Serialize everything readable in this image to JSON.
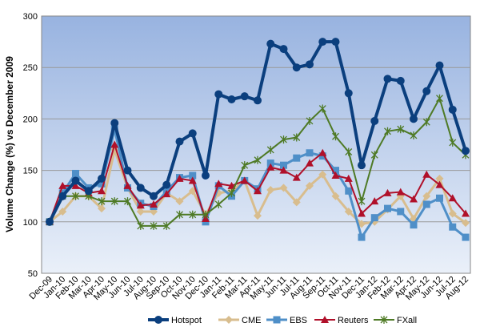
{
  "chart_data": {
    "type": "line",
    "title": "",
    "xlabel": "",
    "ylabel": "Volume Change (%) vs December 2009",
    "ylim": [
      50,
      300
    ],
    "yticks": [
      50,
      100,
      150,
      200,
      250,
      300
    ],
    "grid": true,
    "legend_position": "bottom",
    "categories": [
      "Dec-09",
      "Jan-10",
      "Feb-10",
      "Mar-10",
      "Apr-10",
      "May-10",
      "Jun-10",
      "Jul-10",
      "Aug-10",
      "Sep-10",
      "Oct-10",
      "Nov-10",
      "Dec-10",
      "Jan-11",
      "Feb-11",
      "Mar-11",
      "Apr-11",
      "May-11",
      "Jun-11",
      "Jul-11",
      "Aug-11",
      "Sep-11",
      "Oct-11",
      "Nov-11",
      "Dec-11",
      "Jan-12",
      "Feb-12",
      "Mar-12",
      "Apr-12",
      "May-12",
      "Jun-12",
      "Jul-12",
      "Aug-12"
    ],
    "series": [
      {
        "name": "Hotspot",
        "color": "#0b3f7e",
        "marker": "circle",
        "width": 4,
        "values": [
          100,
          125,
          140,
          130,
          142,
          196,
          150,
          133,
          125,
          136,
          178,
          186,
          145,
          224,
          219,
          222,
          218,
          273,
          268,
          250,
          253,
          275,
          275,
          225,
          155,
          198,
          239,
          237,
          200,
          227,
          252,
          209,
          169
        ]
      },
      {
        "name": "CME",
        "color": "#d8bd8e",
        "marker": "diamond",
        "width": 3,
        "values": [
          100,
          110,
          125,
          125,
          113,
          170,
          133,
          110,
          110,
          128,
          120,
          130,
          107,
          128,
          130,
          140,
          106,
          131,
          133,
          119,
          135,
          146,
          125,
          110,
          98,
          100,
          112,
          125,
          103,
          125,
          142,
          108,
          99
        ]
      },
      {
        "name": "EBS",
        "color": "#4f8fc8",
        "marker": "square",
        "width": 3,
        "values": [
          100,
          128,
          147,
          133,
          137,
          190,
          133,
          118,
          115,
          130,
          143,
          145,
          100,
          135,
          125,
          140,
          132,
          157,
          155,
          162,
          167,
          164,
          150,
          130,
          85,
          104,
          113,
          110,
          97,
          117,
          123,
          95,
          85
        ]
      },
      {
        "name": "Reuters",
        "color": "#b0102a",
        "marker": "triangle",
        "width": 2,
        "values": [
          100,
          135,
          135,
          128,
          130,
          175,
          135,
          116,
          117,
          127,
          142,
          140,
          103,
          137,
          135,
          140,
          130,
          153,
          150,
          143,
          157,
          167,
          145,
          142,
          108,
          120,
          128,
          129,
          122,
          146,
          136,
          123,
          108
        ]
      },
      {
        "name": "FXall",
        "color": "#4e7a25",
        "marker": "star",
        "width": 2,
        "values": [
          100,
          125,
          125,
          125,
          120,
          120,
          120,
          96,
          96,
          96,
          107,
          107,
          107,
          117,
          128,
          155,
          160,
          170,
          180,
          182,
          198,
          210,
          183,
          168,
          120,
          165,
          188,
          190,
          184,
          197,
          220,
          177,
          165
        ]
      }
    ]
  }
}
